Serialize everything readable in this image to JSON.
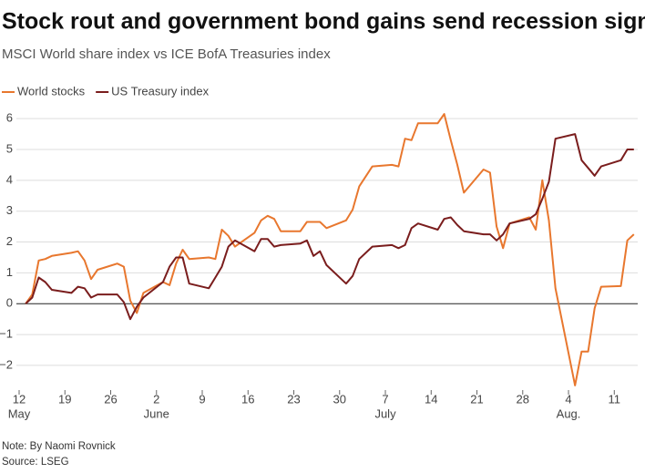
{
  "chart_data": {
    "type": "line",
    "title": "Stock rout and government bond gains send recession signals",
    "subtitle": "MSCI World share index vs ICE BofA Treasuries index",
    "note": "Note: By Naomi Rovnick",
    "source": "Source: LSEG",
    "x": [
      "05-13",
      "05-14",
      "05-15",
      "05-16",
      "05-17",
      "05-20",
      "05-21",
      "05-22",
      "05-23",
      "05-24",
      "05-27",
      "05-28",
      "05-29",
      "05-30",
      "05-31",
      "06-03",
      "06-04",
      "06-05",
      "06-06",
      "06-07",
      "06-10",
      "06-11",
      "06-12",
      "06-13",
      "06-14",
      "06-17",
      "06-18",
      "06-19",
      "06-20",
      "06-21",
      "06-24",
      "06-25",
      "06-26",
      "06-27",
      "06-28",
      "07-01",
      "07-02",
      "07-03",
      "07-05",
      "07-08",
      "07-09",
      "07-10",
      "07-11",
      "07-12",
      "07-15",
      "07-16",
      "07-17",
      "07-18",
      "07-19",
      "07-22",
      "07-23",
      "07-24",
      "07-25",
      "07-26",
      "07-29",
      "07-30",
      "07-31",
      "08-01",
      "08-02",
      "08-05",
      "08-06",
      "08-07",
      "08-08",
      "08-09",
      "08-12",
      "08-13",
      "08-14"
    ],
    "series": [
      {
        "name": "World stocks",
        "color": "#e8772e",
        "values": [
          0,
          0.3,
          1.4,
          1.45,
          1.55,
          1.65,
          1.7,
          1.4,
          0.8,
          1.1,
          1.3,
          1.2,
          0.1,
          -0.3,
          0.35,
          0.7,
          0.6,
          1.3,
          1.75,
          1.45,
          1.5,
          1.45,
          2.4,
          2.2,
          1.85,
          2.3,
          2.7,
          2.85,
          2.75,
          2.35,
          2.35,
          2.65,
          2.65,
          2.65,
          2.45,
          2.7,
          3.05,
          3.8,
          4.45,
          4.5,
          4.45,
          5.35,
          5.3,
          5.85,
          5.85,
          6.15,
          5.3,
          4.5,
          3.6,
          4.35,
          4.25,
          2.5,
          1.8,
          2.6,
          2.8,
          2.4,
          4.0,
          2.7,
          0.5,
          -2.65,
          -1.55,
          -1.55,
          -0.15,
          0.55,
          0.57,
          2.05,
          2.25
        ]
      },
      {
        "name": "US Treasury index",
        "color": "#7a1d1d",
        "values": [
          0,
          0.2,
          0.85,
          0.7,
          0.45,
          0.35,
          0.55,
          0.5,
          0.2,
          0.3,
          0.3,
          0.05,
          -0.5,
          -0.1,
          0.2,
          0.7,
          1.2,
          1.5,
          1.5,
          0.65,
          0.5,
          0.85,
          1.2,
          1.85,
          2.05,
          1.7,
          2.1,
          2.1,
          1.85,
          1.9,
          1.95,
          2.05,
          1.55,
          1.7,
          1.25,
          0.65,
          0.9,
          1.45,
          1.85,
          1.9,
          1.8,
          1.9,
          2.45,
          2.6,
          2.4,
          2.75,
          2.8,
          2.55,
          2.35,
          2.25,
          2.25,
          2.05,
          2.25,
          2.6,
          2.75,
          2.9,
          3.4,
          3.95,
          5.35,
          5.5,
          4.65,
          4.4,
          4.15,
          4.45,
          4.65,
          5.0,
          5.0
        ]
      }
    ],
    "xlim": [
      "05-12",
      "08-15"
    ],
    "xticks": [
      {
        "value": "05-12",
        "label": "12"
      },
      {
        "value": "05-19",
        "label": "19"
      },
      {
        "value": "05-26",
        "label": "26"
      },
      {
        "value": "06-02",
        "label": "2"
      },
      {
        "value": "06-09",
        "label": "9"
      },
      {
        "value": "06-16",
        "label": "16"
      },
      {
        "value": "06-23",
        "label": "23"
      },
      {
        "value": "06-30",
        "label": "30"
      },
      {
        "value": "07-07",
        "label": "7"
      },
      {
        "value": "07-14",
        "label": "14"
      },
      {
        "value": "07-21",
        "label": "21"
      },
      {
        "value": "07-28",
        "label": "28"
      },
      {
        "value": "08-04",
        "label": "4"
      },
      {
        "value": "08-11",
        "label": "11"
      }
    ],
    "x_month_labels": [
      {
        "value": "05-12",
        "label": "May"
      },
      {
        "value": "06-02",
        "label": "June"
      },
      {
        "value": "07-07",
        "label": "July"
      },
      {
        "value": "08-04",
        "label": "Aug."
      }
    ],
    "ylim": [
      -2.8,
      6.3
    ],
    "yticks": [
      {
        "value": -2,
        "label": "−2"
      },
      {
        "value": -1,
        "label": "−1"
      },
      0,
      1,
      2,
      3,
      4,
      5,
      6
    ],
    "grid": true,
    "legend": "top-left"
  }
}
